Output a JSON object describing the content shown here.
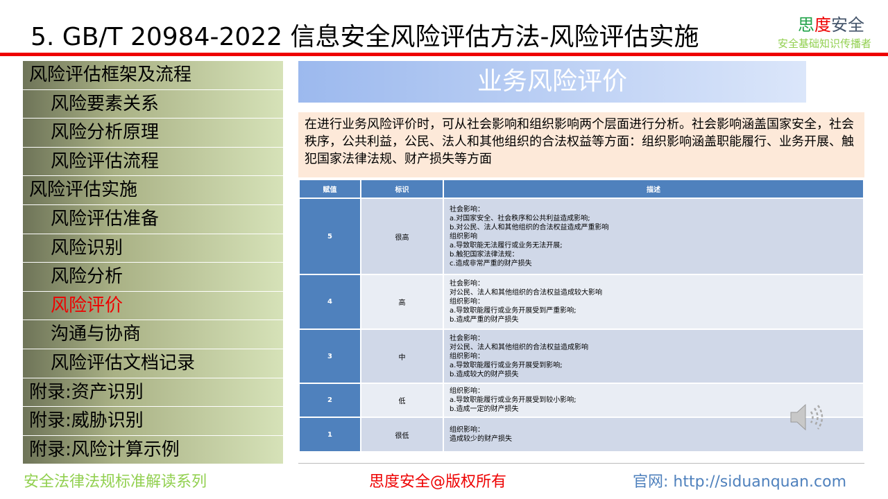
{
  "header": {
    "title": "5. GB/T 20984-2022 信息安全风险评估方法-风险评估实施",
    "logo": {
      "part1": "思",
      "part2": "度",
      "part3": "安全"
    },
    "slogan": "安全基础知识传播者"
  },
  "sidebar": {
    "items": [
      {
        "label": "风险评估框架及流程",
        "level": 1
      },
      {
        "label": "风险要素关系",
        "level": 2
      },
      {
        "label": "风险分析原理",
        "level": 2
      },
      {
        "label": "风险评估流程",
        "level": 2
      },
      {
        "label": "风险评估实施",
        "level": 1
      },
      {
        "label": "风险评估准备",
        "level": 2
      },
      {
        "label": "风险识别",
        "level": 2
      },
      {
        "label": "风险分析",
        "level": 2
      },
      {
        "label": "风险评价",
        "level": 2,
        "active": true
      },
      {
        "label": "沟通与协商",
        "level": 2
      },
      {
        "label": "风险评估文档记录",
        "level": 2
      },
      {
        "label": "附录:资产识别",
        "level": 1
      },
      {
        "label": "附录:威胁识别",
        "level": 1
      },
      {
        "label": "附录:风险计算示例",
        "level": 1
      }
    ]
  },
  "main": {
    "banner": "业务风险评价",
    "description": "在进行业务风险评价时，可从社会影响和组织影响两个层面进行分析。社会影响涵盖国家安全，社会秩序，公共利益，公民、法人和其他组织的合法权益等方面：组织影响涵盖职能履行、业务开展、触犯国家法律法规、财产损失等方面",
    "table": {
      "headers": [
        "赋值",
        "标识",
        "描述"
      ],
      "rows": [
        {
          "value": "5",
          "label": "很高",
          "lines": [
            "社会影响：",
            "a.对国家安全、社会秩序和公共利益造成影响;",
            "b.对公民、法人和其他组织的合法权益造成严重影响",
            "组织影响",
            "a.导致职能无法履行或业务无法开展;",
            "b.触犯国家法律法规：",
            "c.造成非常严重的财产损失"
          ]
        },
        {
          "value": "4",
          "label": "高",
          "lines": [
            "社会影响：",
            "对公民、法人和其他组织的合法权益造成较大影响",
            "组织影响：",
            "a.导致职能履行或业务开展受到严重影响;",
            "b.造成严重的财产损失"
          ]
        },
        {
          "value": "3",
          "label": "中",
          "lines": [
            "社会影响：",
            "对公民、法人和其他组织的合法权益造成影响",
            "组织影响：",
            "a.导致职能履行或业务开展受到影响;",
            "b.造成较大的财产损失"
          ]
        },
        {
          "value": "2",
          "label": "低",
          "lines": [
            "组织影响：",
            "a.导致职能履行或业务开展受到较小影响;",
            "b.造成一定的财产损失"
          ]
        },
        {
          "value": "1",
          "label": "很低",
          "lines": [
            "组织影响：",
            "造成较少的财产损失"
          ]
        }
      ]
    }
  },
  "footer": {
    "series": "安全法律法规标准解读系列",
    "copyright": "思度安全@版权所有",
    "website": "官网: http://siduanquan.com"
  },
  "icons": {
    "speaker": "speaker-icon"
  },
  "colors": {
    "accent_red": "#ee0000",
    "table_header": "#4f81bd",
    "banner": "#9cb9ee"
  }
}
